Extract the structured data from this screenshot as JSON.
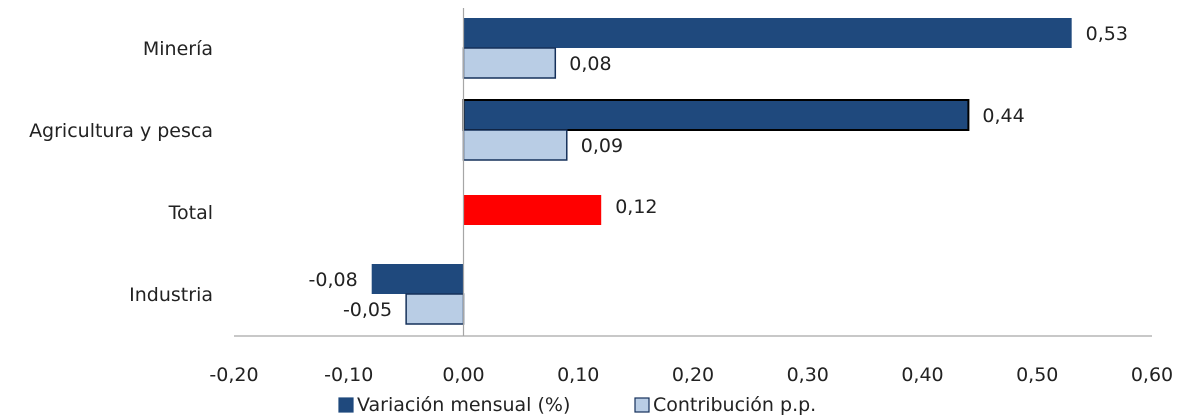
{
  "chart_data": {
    "type": "bar",
    "orientation": "horizontal",
    "categories": [
      "Minería",
      "Agricultura y pesca",
      "Total",
      "Industria"
    ],
    "series": [
      {
        "name": "Variación mensual (%)",
        "color": "#1f497d",
        "values": [
          0.53,
          0.44,
          null,
          -0.08
        ],
        "labels": [
          "0,53",
          "0,44",
          "",
          "-0,08"
        ]
      },
      {
        "name": "Contribución p.p.",
        "color": "#b9cde5",
        "values": [
          0.08,
          0.09,
          null,
          -0.05
        ],
        "labels": [
          "0,08",
          "0,09",
          "",
          "-0,05"
        ]
      }
    ],
    "highlight": {
      "category": "Total",
      "value": 0.12,
      "label": "0,12",
      "color": "#ff0000"
    },
    "xlim": [
      -0.2,
      0.6
    ],
    "x_ticks": [
      -0.2,
      -0.1,
      0.0,
      0.1,
      0.2,
      0.3,
      0.4,
      0.5,
      0.6
    ],
    "x_tick_labels": [
      "-0,20",
      "-0,10",
      "0,00",
      "0,10",
      "0,20",
      "0,30",
      "0,40",
      "0,50",
      "0,60"
    ],
    "title": "",
    "xlabel": "",
    "ylabel": "",
    "grid": false,
    "legend_position": "bottom"
  }
}
